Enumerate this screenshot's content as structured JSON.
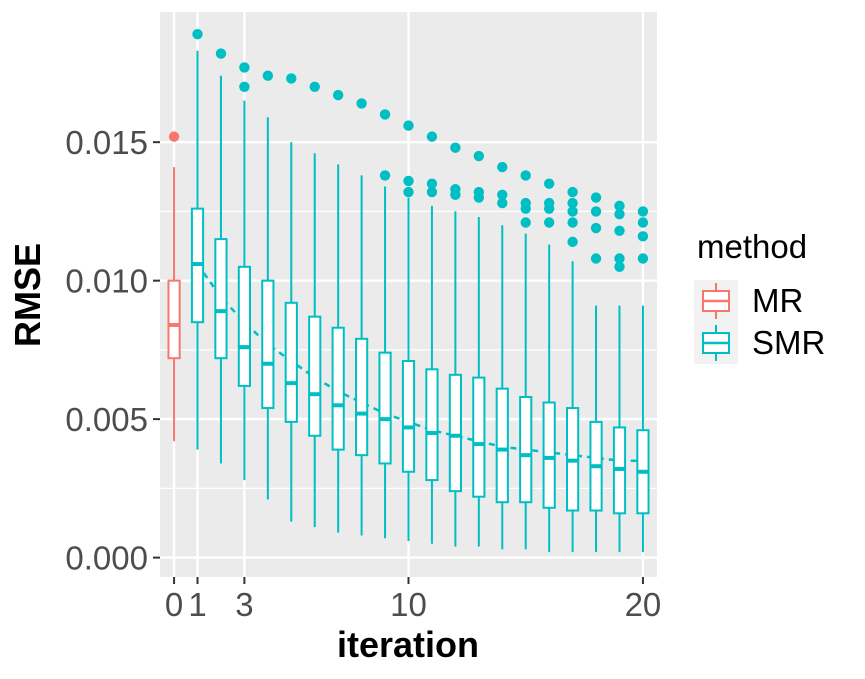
{
  "chart_data": {
    "type": "boxplot",
    "xlabel": "iteration",
    "ylabel": "RMSE",
    "xlim": [
      -0.6,
      20.6
    ],
    "ylim": [
      -0.0007,
      0.0197
    ],
    "x_ticks": [
      0,
      1,
      3,
      10,
      20
    ],
    "x_tick_labels": [
      "0",
      "1",
      "3",
      "10",
      "20"
    ],
    "y_ticks": [
      0.0,
      0.005,
      0.01,
      0.015
    ],
    "y_tick_labels": [
      "0.000",
      "0.005",
      "0.010",
      "0.015"
    ],
    "background": "#ebebeb",
    "legend": {
      "title": "method",
      "position": "right",
      "entries": [
        {
          "name": "MR",
          "color": "#f8766d"
        },
        {
          "name": "SMR",
          "color": "#00bfc4"
        }
      ]
    },
    "series": [
      {
        "name": "MR",
        "color": "#f8766d",
        "boxes": [
          {
            "x": 0,
            "q1": 0.0072,
            "median": 0.0084,
            "q3": 0.01,
            "whisker_low": 0.0042,
            "whisker_high": 0.0141,
            "outliers": [
              0.0152
            ]
          }
        ]
      },
      {
        "name": "SMR",
        "color": "#00bfc4",
        "boxes": [
          {
            "x": 1,
            "q1": 0.0085,
            "median": 0.0106,
            "q3": 0.0126,
            "whisker_low": 0.0039,
            "whisker_high": 0.0183,
            "outliers": [
              0.0189
            ]
          },
          {
            "x": 2,
            "q1": 0.0072,
            "median": 0.0089,
            "q3": 0.0115,
            "whisker_low": 0.0034,
            "whisker_high": 0.0174,
            "outliers": [
              0.0182
            ]
          },
          {
            "x": 3,
            "q1": 0.0062,
            "median": 0.0076,
            "q3": 0.0105,
            "whisker_low": 0.0028,
            "whisker_high": 0.0165,
            "outliers": [
              0.0177,
              0.017
            ]
          },
          {
            "x": 4,
            "q1": 0.0054,
            "median": 0.007,
            "q3": 0.01,
            "whisker_low": 0.0021,
            "whisker_high": 0.0159,
            "outliers": [
              0.0174
            ]
          },
          {
            "x": 5,
            "q1": 0.0049,
            "median": 0.0063,
            "q3": 0.0092,
            "whisker_low": 0.0013,
            "whisker_high": 0.015,
            "outliers": [
              0.0173
            ]
          },
          {
            "x": 6,
            "q1": 0.0044,
            "median": 0.0059,
            "q3": 0.0087,
            "whisker_low": 0.0011,
            "whisker_high": 0.0146,
            "outliers": [
              0.017
            ]
          },
          {
            "x": 7,
            "q1": 0.0039,
            "median": 0.0055,
            "q3": 0.0083,
            "whisker_low": 0.0009,
            "whisker_high": 0.0142,
            "outliers": [
              0.0167
            ]
          },
          {
            "x": 8,
            "q1": 0.0037,
            "median": 0.0052,
            "q3": 0.0079,
            "whisker_low": 0.0008,
            "whisker_high": 0.0138,
            "outliers": [
              0.0164
            ]
          },
          {
            "x": 9,
            "q1": 0.0034,
            "median": 0.005,
            "q3": 0.0074,
            "whisker_low": 0.0007,
            "whisker_high": 0.0134,
            "outliers": [
              0.016,
              0.0138
            ]
          },
          {
            "x": 10,
            "q1": 0.0031,
            "median": 0.0047,
            "q3": 0.0071,
            "whisker_low": 0.0006,
            "whisker_high": 0.013,
            "outliers": [
              0.0156,
              0.0136,
              0.0132
            ]
          },
          {
            "x": 11,
            "q1": 0.0028,
            "median": 0.0045,
            "q3": 0.0068,
            "whisker_low": 0.0005,
            "whisker_high": 0.0127,
            "outliers": [
              0.0152,
              0.0135,
              0.0132
            ]
          },
          {
            "x": 12,
            "q1": 0.0024,
            "median": 0.0044,
            "q3": 0.0066,
            "whisker_low": 0.0004,
            "whisker_high": 0.0125,
            "outliers": [
              0.0148,
              0.0133,
              0.0131
            ]
          },
          {
            "x": 13,
            "q1": 0.0022,
            "median": 0.0041,
            "q3": 0.0065,
            "whisker_low": 0.0004,
            "whisker_high": 0.0123,
            "outliers": [
              0.0145,
              0.0132,
              0.013
            ]
          },
          {
            "x": 14,
            "q1": 0.002,
            "median": 0.0039,
            "q3": 0.0061,
            "whisker_low": 0.0003,
            "whisker_high": 0.012,
            "outliers": [
              0.0141,
              0.0131,
              0.0128
            ]
          },
          {
            "x": 15,
            "q1": 0.002,
            "median": 0.0037,
            "q3": 0.0058,
            "whisker_low": 0.0003,
            "whisker_high": 0.0117,
            "outliers": [
              0.0138,
              0.0128,
              0.0126,
              0.0121
            ]
          },
          {
            "x": 16,
            "q1": 0.0018,
            "median": 0.0036,
            "q3": 0.0056,
            "whisker_low": 0.0002,
            "whisker_high": 0.0113,
            "outliers": [
              0.0135,
              0.0128,
              0.0126,
              0.0121
            ]
          },
          {
            "x": 17,
            "q1": 0.0017,
            "median": 0.0035,
            "q3": 0.0054,
            "whisker_low": 0.0002,
            "whisker_high": 0.0107,
            "outliers": [
              0.0132,
              0.0128,
              0.0125,
              0.0121,
              0.0114
            ]
          },
          {
            "x": 18,
            "q1": 0.0017,
            "median": 0.0033,
            "q3": 0.0049,
            "whisker_low": 0.0002,
            "whisker_high": 0.0091,
            "outliers": [
              0.013,
              0.0125,
              0.0119,
              0.0108
            ]
          },
          {
            "x": 19,
            "q1": 0.0016,
            "median": 0.0032,
            "q3": 0.0047,
            "whisker_low": 0.0002,
            "whisker_high": 0.0091,
            "outliers": [
              0.0127,
              0.0124,
              0.0118,
              0.0108,
              0.0105
            ]
          },
          {
            "x": 20,
            "q1": 0.0016,
            "median": 0.0031,
            "q3": 0.0046,
            "whisker_low": 0.0002,
            "whisker_high": 0.0091,
            "outliers": [
              0.0125,
              0.0121,
              0.0116,
              0.0108
            ]
          }
        ],
        "trend": {
          "style": "dashed",
          "x": [
            1,
            2,
            3,
            4,
            5,
            6,
            7,
            8,
            9,
            10,
            11,
            12,
            13,
            14,
            15,
            16,
            17,
            18,
            19,
            20
          ],
          "y": [
            0.0106,
            0.0094,
            0.0085,
            0.0077,
            0.0071,
            0.0065,
            0.006,
            0.0056,
            0.0052,
            0.0049,
            0.0046,
            0.0044,
            0.0042,
            0.004,
            0.0039,
            0.0038,
            0.0037,
            0.0036,
            0.0035,
            0.0035
          ]
        }
      }
    ]
  }
}
